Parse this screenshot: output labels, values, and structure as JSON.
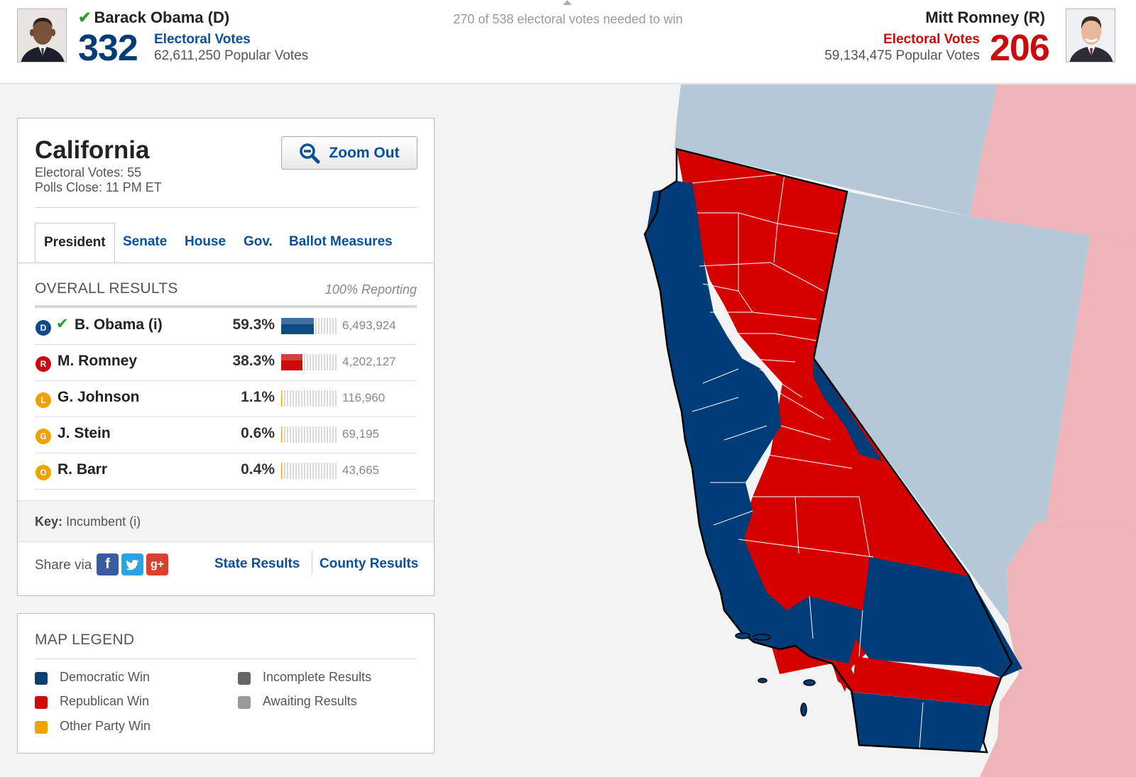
{
  "header": {
    "needed": "270 of 538 electoral votes needed to win",
    "left": {
      "name": "Barack Obama (D)",
      "electoral_votes": "332",
      "ev_label": "Electoral Votes",
      "popular_votes": "62,611,250 Popular Votes",
      "winner": true
    },
    "right": {
      "name": "Mitt Romney (R)",
      "electoral_votes": "206",
      "ev_label": "Electoral Votes",
      "popular_votes": "59,134,475 Popular Votes",
      "winner": false
    }
  },
  "state": {
    "name": "California",
    "electoral_votes": "Electoral Votes: 55",
    "polls_close": "Polls Close: 11 PM ET",
    "zoom_label": "Zoom Out"
  },
  "tabs": [
    "President",
    "Senate",
    "House",
    "Gov.",
    "Ballot Measures"
  ],
  "results": {
    "title": "OVERALL RESULTS",
    "reporting": "100% Reporting",
    "rows": [
      {
        "badge": "D",
        "name": "B. Obama (i)",
        "pct": "59.3%",
        "share": 59.3,
        "votes": "6,493,924",
        "color": "#0e4a86",
        "winner": true
      },
      {
        "badge": "R",
        "name": "M. Romney",
        "pct": "38.3%",
        "share": 38.3,
        "votes": "4,202,127",
        "color": "#cc0a0a",
        "winner": false
      },
      {
        "badge": "L",
        "name": "G. Johnson",
        "pct": "1.1%",
        "share": 1.1,
        "votes": "116,960",
        "color": "#f0a202",
        "winner": false
      },
      {
        "badge": "G",
        "name": "J. Stein",
        "pct": "0.6%",
        "share": 0.6,
        "votes": "69,195",
        "color": "#f0a202",
        "winner": false
      },
      {
        "badge": "O",
        "name": "R. Barr",
        "pct": "0.4%",
        "share": 0.4,
        "votes": "43,665",
        "color": "#f0a202",
        "winner": false
      }
    ]
  },
  "key": {
    "label": "Key:",
    "text": "Incumbent (i)"
  },
  "share": {
    "label": "Share via",
    "links": [
      "State Results",
      "County Results"
    ]
  },
  "legend": {
    "title": "MAP LEGEND",
    "items": [
      {
        "label": "Democratic Win",
        "color": "#0e3d73"
      },
      {
        "label": "Republican Win",
        "color": "#cc0a0a"
      },
      {
        "label": "Other Party Win",
        "color": "#f0a202"
      },
      {
        "label": "Incomplete Results",
        "color": "#666666"
      },
      {
        "label": "Awaiting Results",
        "color": "#9a9a9a"
      }
    ]
  },
  "colors": {
    "dem": "#003c78",
    "rep": "#d40000",
    "neighbor_dem": "#b4c8d8",
    "neighbor_rep": "#eeb4b8"
  }
}
